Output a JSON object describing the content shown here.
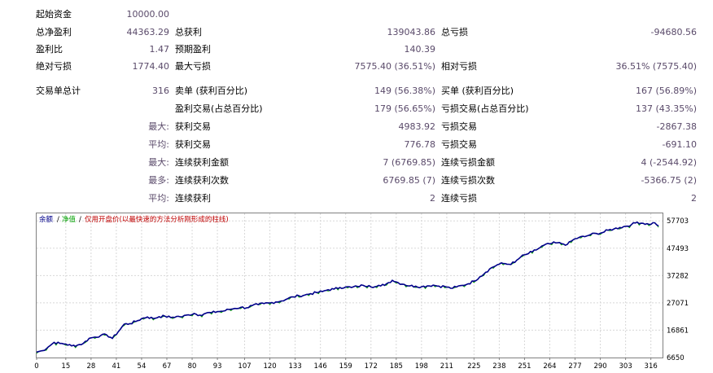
{
  "stats": {
    "initial_deposit_label": "起始资金",
    "initial_deposit_value": "10000.00",
    "total_net_profit_label": "总净盈利",
    "total_net_profit_value": "44363.29",
    "gross_profit_label": "总获利",
    "gross_profit_value": "139043.86",
    "gross_loss_label": "总亏损",
    "gross_loss_value": "-94680.56",
    "profit_factor_label": "盈利比",
    "profit_factor_value": "1.47",
    "expected_payoff_label": "预期盈利",
    "expected_payoff_value": "140.39",
    "absolute_drawdown_label": "绝对亏损",
    "absolute_drawdown_value": "1774.40",
    "maximal_drawdown_label": "最大亏损",
    "maximal_drawdown_value": "7575.40 (36.51%)",
    "relative_drawdown_label": "相对亏损",
    "relative_drawdown_value": "36.51% (7575.40)",
    "total_trades_label": "交易单总计",
    "total_trades_value": "316",
    "short_positions_label": "卖单 (获利百分比)",
    "short_positions_value": "149 (56.38%)",
    "long_positions_label": "买单 (获利百分比)",
    "long_positions_value": "167 (56.89%)",
    "profit_trades_label": "盈利交易(占总百分比)",
    "profit_trades_value": "179 (56.65%)",
    "loss_trades_label": "亏损交易(占总百分比)",
    "loss_trades_value": "137 (43.35%)",
    "largest_prefix": "最大:",
    "largest_profit_label": "获利交易",
    "largest_profit_value": "4983.92",
    "largest_loss_label": "亏损交易",
    "largest_loss_value": "-2867.38",
    "average_prefix": "平均:",
    "average_profit_label": "获利交易",
    "average_profit_value": "776.78",
    "average_loss_label": "亏损交易",
    "average_loss_value": "-691.10",
    "max_prefix": "最大:",
    "max_consec_wins_label": "连续获利金额",
    "max_consec_wins_value": "7 (6769.85)",
    "max_consec_losses_label": "连续亏损金额",
    "max_consec_losses_value": "4 (-2544.92)",
    "maximal_prefix": "最多:",
    "maximal_consec_profit_label": "连续获利次数",
    "maximal_consec_profit_value": "6769.85 (7)",
    "maximal_consec_loss_label": "连续亏损次数",
    "maximal_consec_loss_value": "-5366.75 (2)",
    "avg_prefix": "平均:",
    "avg_consec_wins_label": "连续获利",
    "avg_consec_wins_value": "2",
    "avg_consec_losses_label": "连续亏损",
    "avg_consec_losses_value": "2"
  },
  "chart_data": {
    "type": "line",
    "legend": {
      "balance": "余额",
      "sep1": "/",
      "equity": "净值",
      "sep2": "/",
      "note": "仅用开盘价(以最快速的方法分析刚形成的柱线)"
    },
    "colors": {
      "balance": "#00008b",
      "equity": "#00a000",
      "note": "#c00000"
    },
    "x_ticks": [
      0,
      15,
      28,
      41,
      54,
      67,
      80,
      93,
      107,
      120,
      133,
      146,
      159,
      172,
      185,
      198,
      211,
      225,
      238,
      251,
      264,
      277,
      290,
      303,
      316
    ],
    "y_ticks": [
      57703,
      47493,
      37282,
      27071,
      16861,
      6650
    ],
    "xlim": [
      0,
      322
    ],
    "ylim": [
      6650,
      60500
    ],
    "balance_key_points": [
      [
        0,
        8700
      ],
      [
        3,
        9200
      ],
      [
        6,
        10600
      ],
      [
        9,
        12300
      ],
      [
        12,
        11900
      ],
      [
        15,
        11700
      ],
      [
        18,
        11000
      ],
      [
        21,
        11300
      ],
      [
        24,
        11900
      ],
      [
        27,
        13800
      ],
      [
        30,
        14300
      ],
      [
        33,
        14900
      ],
      [
        36,
        15100
      ],
      [
        39,
        13800
      ],
      [
        42,
        16300
      ],
      [
        45,
        19100
      ],
      [
        48,
        19300
      ],
      [
        51,
        20100
      ],
      [
        54,
        21200
      ],
      [
        57,
        21800
      ],
      [
        60,
        21200
      ],
      [
        63,
        21900
      ],
      [
        66,
        22100
      ],
      [
        69,
        21600
      ],
      [
        72,
        22000
      ],
      [
        75,
        21900
      ],
      [
        78,
        22600
      ],
      [
        81,
        23100
      ],
      [
        84,
        22500
      ],
      [
        87,
        23200
      ],
      [
        90,
        23400
      ],
      [
        93,
        23800
      ],
      [
        96,
        24000
      ],
      [
        99,
        24600
      ],
      [
        102,
        25000
      ],
      [
        105,
        25400
      ],
      [
        108,
        25200
      ],
      [
        111,
        26100
      ],
      [
        114,
        26400
      ],
      [
        117,
        26800
      ],
      [
        120,
        27000
      ],
      [
        123,
        27400
      ],
      [
        126,
        27800
      ],
      [
        129,
        28600
      ],
      [
        132,
        29300
      ],
      [
        135,
        29700
      ],
      [
        138,
        30000
      ],
      [
        141,
        30500
      ],
      [
        144,
        30900
      ],
      [
        147,
        31300
      ],
      [
        150,
        32000
      ],
      [
        153,
        32200
      ],
      [
        156,
        32800
      ],
      [
        159,
        33000
      ],
      [
        162,
        32800
      ],
      [
        165,
        33200
      ],
      [
        168,
        33600
      ],
      [
        171,
        33500
      ],
      [
        174,
        33100
      ],
      [
        177,
        33400
      ],
      [
        180,
        34200
      ],
      [
        183,
        35500
      ],
      [
        186,
        34600
      ],
      [
        189,
        34000
      ],
      [
        192,
        33400
      ],
      [
        195,
        33300
      ],
      [
        198,
        33100
      ],
      [
        201,
        33400
      ],
      [
        204,
        33700
      ],
      [
        207,
        33300
      ],
      [
        210,
        33200
      ],
      [
        213,
        32500
      ],
      [
        216,
        33000
      ],
      [
        219,
        33600
      ],
      [
        222,
        34200
      ],
      [
        225,
        35200
      ],
      [
        228,
        36800
      ],
      [
        231,
        38500
      ],
      [
        234,
        40200
      ],
      [
        237,
        41300
      ],
      [
        240,
        41800
      ],
      [
        243,
        41500
      ],
      [
        246,
        42200
      ],
      [
        249,
        44200
      ],
      [
        252,
        45200
      ],
      [
        255,
        46100
      ],
      [
        258,
        47300
      ],
      [
        261,
        48600
      ],
      [
        264,
        49100
      ],
      [
        267,
        49500
      ],
      [
        270,
        49200
      ],
      [
        273,
        48900
      ],
      [
        276,
        50600
      ],
      [
        279,
        51500
      ],
      [
        282,
        51800
      ],
      [
        285,
        52600
      ],
      [
        288,
        53000
      ],
      [
        291,
        53300
      ],
      [
        294,
        54200
      ],
      [
        297,
        54700
      ],
      [
        300,
        55200
      ],
      [
        303,
        55700
      ],
      [
        306,
        56300
      ],
      [
        309,
        57200
      ],
      [
        312,
        56800
      ],
      [
        315,
        56400
      ],
      [
        318,
        57000
      ],
      [
        320,
        55800
      ]
    ]
  }
}
